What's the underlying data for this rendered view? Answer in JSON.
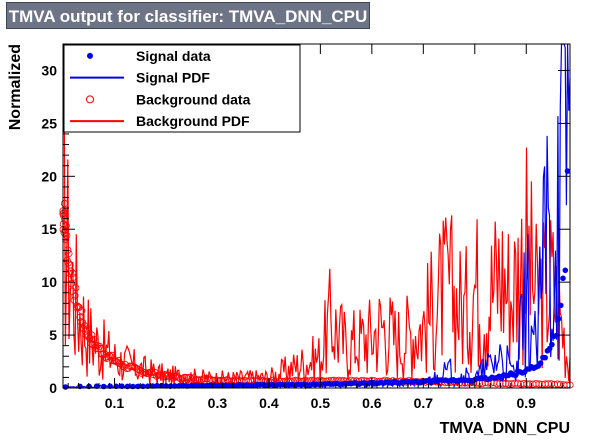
{
  "title": "TMVA output for classifier: TMVA_DNN_CPU",
  "chart_data": {
    "type": "line",
    "title": "TMVA output for classifier: TMVA_DNN_CPU",
    "xlabel": "TMVA_DNN_CPU",
    "ylabel": "Normalized",
    "xlim": [
      0.0,
      0.985
    ],
    "ylim": [
      0,
      32.5
    ],
    "xticks": [
      0.1,
      0.2,
      0.3,
      0.4,
      0.5,
      0.6,
      0.7,
      0.8,
      0.9
    ],
    "yticks": [
      0,
      5,
      10,
      15,
      20,
      25,
      30
    ],
    "legend_position": "top-left",
    "colors": {
      "signal": "#0000ee",
      "background": "#ff0000",
      "title_bg": "#6c7485"
    },
    "series": [
      {
        "name": "Signal data",
        "role": "signal-data",
        "style": "markers",
        "x": [
          0.005,
          0.05,
          0.1,
          0.2,
          0.3,
          0.4,
          0.5,
          0.6,
          0.7,
          0.8,
          0.85,
          0.9,
          0.93,
          0.95,
          0.96,
          0.97,
          0.975,
          0.978,
          0.98,
          0.982
        ],
        "y": [
          0.1,
          0.15,
          0.15,
          0.2,
          0.25,
          0.3,
          0.35,
          0.45,
          0.6,
          0.8,
          1.0,
          1.6,
          2.5,
          4.0,
          6.0,
          9.0,
          12.0,
          16.0,
          20.0,
          22.0
        ]
      },
      {
        "name": "Signal PDF",
        "role": "signal-pdf",
        "style": "line",
        "x": [
          0.0,
          0.1,
          0.2,
          0.3,
          0.4,
          0.5,
          0.6,
          0.7,
          0.75,
          0.8,
          0.85,
          0.88,
          0.9,
          0.92,
          0.94,
          0.95,
          0.96,
          0.965,
          0.97,
          0.975,
          0.98,
          0.985
        ],
        "y": [
          0.1,
          0.15,
          0.2,
          0.25,
          0.3,
          0.3,
          0.4,
          0.5,
          1.5,
          0.8,
          3.0,
          1.0,
          9.0,
          3.0,
          16.0,
          8.0,
          24.0,
          12.0,
          32.5,
          18.0,
          32.5,
          22.0
        ]
      },
      {
        "name": "Background data",
        "role": "background-data",
        "style": "open-circles",
        "x": [
          0.002,
          0.005,
          0.008,
          0.012,
          0.016,
          0.02,
          0.025,
          0.03,
          0.04,
          0.05,
          0.06,
          0.08,
          0.1,
          0.12,
          0.15,
          0.18,
          0.2,
          0.25,
          0.3,
          0.35,
          0.4,
          0.45,
          0.5,
          0.55,
          0.6,
          0.65,
          0.7,
          0.75,
          0.8,
          0.85,
          0.9,
          0.95,
          0.98
        ],
        "y": [
          16.5,
          15.0,
          13.5,
          12.0,
          10.8,
          9.5,
          8.5,
          7.5,
          6.0,
          5.0,
          4.2,
          3.3,
          2.6,
          2.1,
          1.6,
          1.3,
          1.1,
          0.9,
          0.75,
          0.7,
          0.65,
          0.65,
          0.65,
          0.65,
          0.65,
          0.65,
          0.6,
          0.55,
          0.5,
          0.45,
          0.4,
          0.35,
          0.3
        ]
      },
      {
        "name": "Background PDF",
        "role": "background-pdf",
        "style": "line",
        "x": [
          0.0,
          0.01,
          0.02,
          0.03,
          0.05,
          0.08,
          0.1,
          0.15,
          0.2,
          0.3,
          0.4,
          0.45,
          0.5,
          0.52,
          0.55,
          0.6,
          0.62,
          0.65,
          0.7,
          0.73,
          0.75,
          0.78,
          0.8,
          0.82,
          0.85,
          0.87,
          0.9,
          0.92,
          0.95,
          0.97,
          0.98
        ],
        "y": [
          17.0,
          12.5,
          9.5,
          7.5,
          5.0,
          3.5,
          2.8,
          1.8,
          1.2,
          0.9,
          1.0,
          2.0,
          3.0,
          6.5,
          4.0,
          5.0,
          6.0,
          4.5,
          6.0,
          8.5,
          9.5,
          7.0,
          10.0,
          8.0,
          11.0,
          9.0,
          13.0,
          8.5,
          10.0,
          6.0,
          3.0
        ]
      }
    ]
  }
}
